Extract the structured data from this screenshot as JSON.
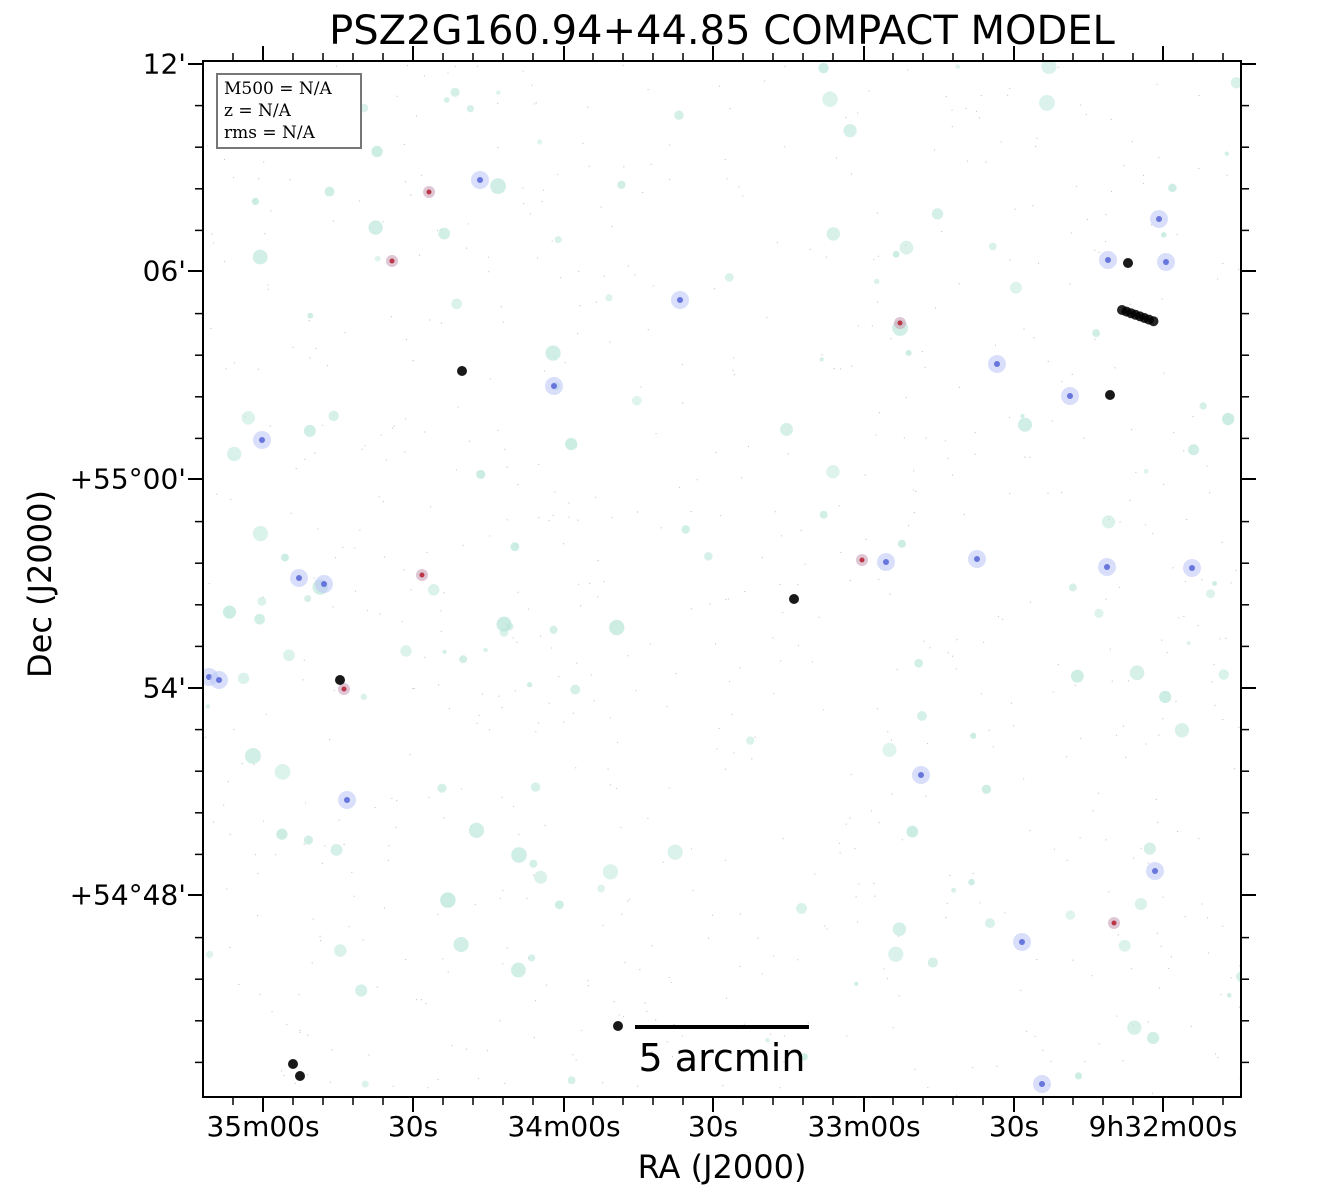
{
  "title": "PSZ2G160.94+44.85 COMPACT MODEL",
  "xlabel": "RA (J2000)",
  "ylabel": "Dec (J2000)",
  "x_ticks": [
    "35m00s",
    "30s",
    "34m00s",
    "30s",
    "33m00s",
    "30s",
    "9h32m00s"
  ],
  "y_ticks": [
    "12'",
    "06'",
    "+55°00'",
    "54'",
    "+54°48'"
  ],
  "info": {
    "m500": "M500 = N/A",
    "z": "z = N/A",
    "rms": "rms = N/A"
  },
  "scalebar": {
    "label": "5 arcmin",
    "length_arcmin": 5
  },
  "colors": {
    "background": "#ffffff",
    "frame": "#000000",
    "faint_source": "#b8e6d8",
    "blue_source": "#8f9bf0",
    "bright_source": "#000000",
    "red_core": "#b83040"
  }
}
